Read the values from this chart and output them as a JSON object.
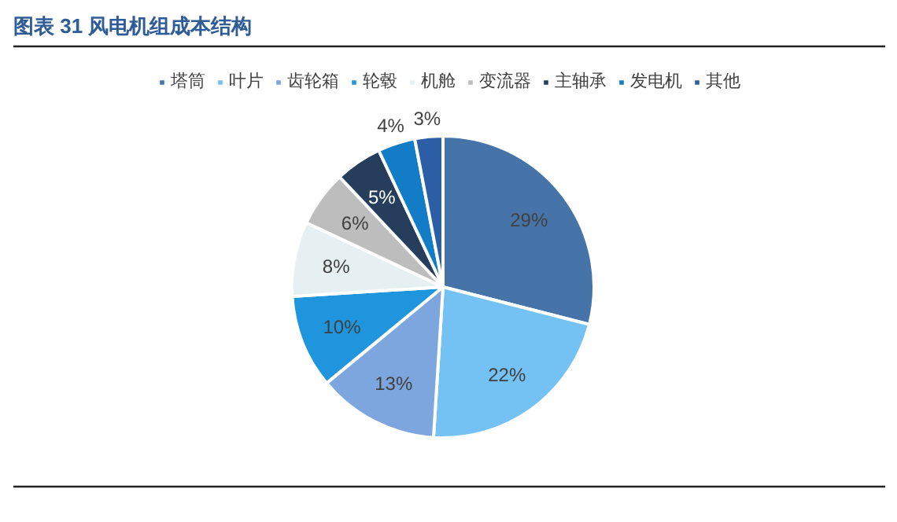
{
  "chart_data": {
    "type": "pie",
    "title": "图表 31  风电机组成本结构",
    "categories": [
      "塔筒",
      "叶片",
      "齿轮箱",
      "轮毂",
      "机舱",
      "变流器",
      "主轴承",
      "发电机",
      "其他"
    ],
    "values": [
      29,
      22,
      13,
      10,
      8,
      6,
      5,
      4,
      3
    ],
    "value_labels": [
      "29%",
      "22%",
      "13%",
      "10%",
      "8%",
      "6%",
      "5%",
      "4%",
      "3%"
    ],
    "colors": [
      "#4673a8",
      "#74c1f4",
      "#7ea6de",
      "#1e95dd",
      "#e6eff2",
      "#bdbdbd",
      "#263d5c",
      "#127cc6",
      "#2b5ea5"
    ],
    "legend": "top"
  }
}
